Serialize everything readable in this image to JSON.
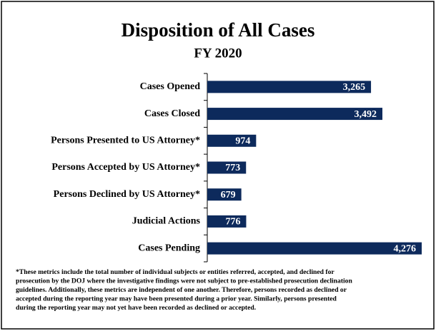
{
  "chart_data": {
    "type": "hbar",
    "title": "Disposition of All Cases",
    "subtitle": "FY 2020",
    "categories": [
      "Cases Opened",
      "Cases Closed",
      "Persons Presented to US Attorney*",
      "Persons Accepted by US Attorney*",
      "Persons Declined by US Attorney*",
      "Judicial Actions",
      "Cases Pending"
    ],
    "values": [
      3265,
      3492,
      974,
      773,
      679,
      776,
      4276
    ],
    "value_labels": [
      "3,265",
      "3,492",
      "974",
      "773",
      "679",
      "776",
      "4,276"
    ],
    "color": "#0d2a5c",
    "footnote": [
      "*These metrics include the total number of individual subjects or entities referred, accepted, and declined for",
      "prosecution by the DOJ where the investigative findings were not subject to pre-established prosecution declination",
      "guidelines.  Additionally, these metrics are independent of one another.  Therefore, persons recorded as declined or",
      "accepted during the reporting year may have been presented during a prior year.  Similarly, persons presented",
      "during the reporting year may not yet have been recorded as declined or accepted."
    ]
  }
}
